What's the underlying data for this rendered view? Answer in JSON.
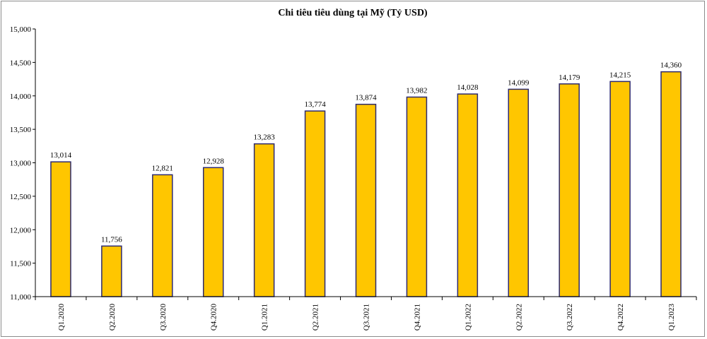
{
  "chart_data": {
    "type": "bar",
    "title": "Chi tiêu tiêu dùng tại Mỹ (Tỷ USD)",
    "categories": [
      "Q1.2020",
      "Q2.2020",
      "Q3.2020",
      "Q4.2020",
      "Q1.2021",
      "Q2.2021",
      "Q3.2021",
      "Q4.2021",
      "Q1.2022",
      "Q2.2022",
      "Q3.2022",
      "Q4.2022",
      "Q1.2023"
    ],
    "values": [
      13014,
      11756,
      12821,
      12928,
      13283,
      13774,
      13874,
      13982,
      14028,
      14099,
      14179,
      14215,
      14360
    ],
    "value_labels": [
      "13,014",
      "11,756",
      "12,821",
      "12,928",
      "13,283",
      "13,774",
      "13,874",
      "13,982",
      "14,028",
      "14,099",
      "14,179",
      "14,215",
      "14,360"
    ],
    "ylim": [
      11000,
      15000
    ],
    "yticks": [
      11000,
      11500,
      12000,
      12500,
      13000,
      13500,
      14000,
      14500,
      15000
    ],
    "ytick_labels": [
      "11,000",
      "11,500",
      "12,000",
      "12,500",
      "13,000",
      "13,500",
      "14,000",
      "14,500",
      "15,000"
    ],
    "grid": false,
    "bar_color": "#ffc600",
    "bar_edge_color": "#2e2a6e",
    "xlabel": "",
    "ylabel": ""
  }
}
